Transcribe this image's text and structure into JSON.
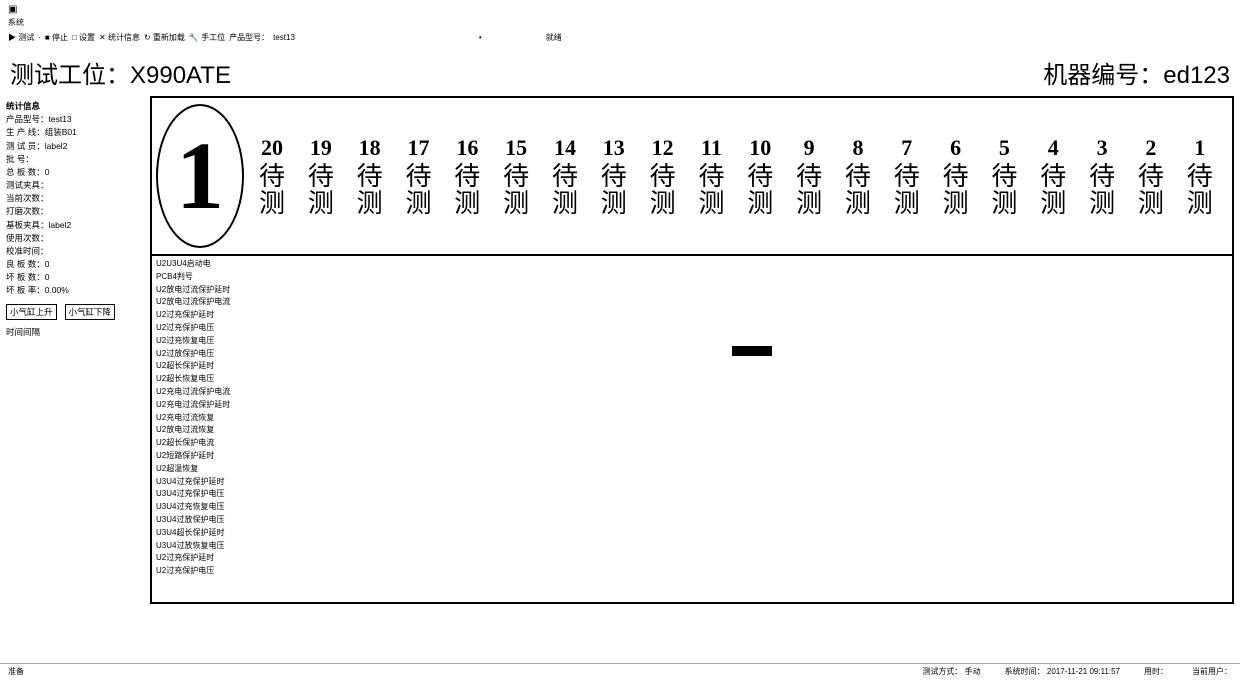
{
  "menu": {
    "system": "系统"
  },
  "toolbar": {
    "items": [
      "▶ 测试",
      "■ 停止",
      "□ 设置",
      "✕ 统计信息",
      "↻ 重新加载",
      "🔧 手工位"
    ],
    "prod_label": "产品型号：",
    "prod_value": "test13",
    "mid_dot": "•",
    "right_label": "就绪"
  },
  "header": {
    "station_label": "测试工位：",
    "station_value": "X990ATE",
    "machine_label": "机器编号：",
    "machine_value": "ed123"
  },
  "sidebar": {
    "title": "统计信息",
    "rows": [
      {
        "k": "产品型号：",
        "v": "test13"
      },
      {
        "k": "生 产 线：",
        "v": "组装B01"
      },
      {
        "k": "测 试 员：",
        "v": "label2"
      },
      {
        "k": "批      号：",
        "v": ""
      },
      {
        "k": "总 板 数：",
        "v": "0"
      },
      {
        "k": "测试夹具：",
        "v": ""
      },
      {
        "k": "当前次数：",
        "v": ""
      },
      {
        "k": "打磨次数：",
        "v": ""
      },
      {
        "k": "基板夹具：",
        "v": "label2"
      },
      {
        "k": "使用次数：",
        "v": ""
      },
      {
        "k": "校准时间：",
        "v": ""
      },
      {
        "k": "良 板 数：",
        "v": "0"
      },
      {
        "k": "坏 板 数：",
        "v": "0"
      },
      {
        "k": "坏 板 率：",
        "v": "0.00%"
      }
    ],
    "btn_up": "小气缸上升",
    "btn_down": "小气缸下降",
    "timer_label": "时间间隔"
  },
  "panel": {
    "big_number": "1",
    "slot_status": "待测",
    "slot_numbers": [
      20,
      19,
      18,
      17,
      16,
      15,
      14,
      13,
      12,
      11,
      10,
      9,
      8,
      7,
      6,
      5,
      4,
      3,
      2,
      1
    ]
  },
  "log_lines": [
    "U2U3U4启动电",
    "PCB4判号",
    "U2放电过流保护延时",
    "U2放电过流保护电流",
    "U2过充保护延时",
    "U2过充保护电压",
    "U2过充恢复电压",
    "U2过放保护电压",
    "U2超长保护延时",
    "U2超长恢复电压",
    "U2充电过流保护电流",
    "U2充电过流保护延时",
    "U2充电过流恢复",
    "U2放电过流恢复",
    "U2超长保护电流",
    "U2短路保护延时",
    "U2超温恢复",
    "U3U4过充保护延时",
    "U3U4过充保护电压",
    "U3U4过充恢复电压",
    "U3U4过放保护电压",
    "U3U4超长保护延时",
    "U3U4过放恢复电压",
    "U2过充保护延时",
    "U2过充保护电压"
  ],
  "footer": {
    "left": "准备",
    "mode_label": "测试方式：",
    "mode_value": "手动",
    "time_label": "系统时间：",
    "time_value": "2017-11-21 09:11:57",
    "elapsed_label": "用时：",
    "elapsed_value": "",
    "user_label": "当前用户：",
    "user_value": ""
  },
  "colors": {
    "border": "#000000",
    "bg": "#ffffff",
    "text": "#000000"
  }
}
